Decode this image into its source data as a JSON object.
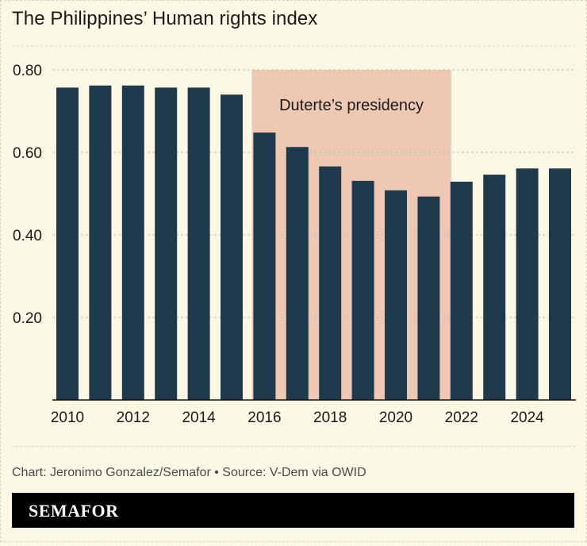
{
  "title": "The Philippines’ Human rights index",
  "credit": "Chart: Jeronimo Gonzalez/Semafor • Source: V-Dem via OWID",
  "brand": "SEMAFOR",
  "colors": {
    "background": "#fbf8e6",
    "bar": "#1f3a4d",
    "highlight": "#eec8b2",
    "grid": "#b9b6a8",
    "text": "#1a1a1a"
  },
  "chart_data": {
    "type": "bar",
    "x": [
      2010,
      2011,
      2012,
      2013,
      2014,
      2015,
      2016,
      2017,
      2018,
      2019,
      2020,
      2021,
      2022,
      2023,
      2024,
      2025
    ],
    "values": [
      0.757,
      0.762,
      0.762,
      0.757,
      0.757,
      0.74,
      0.648,
      0.613,
      0.566,
      0.531,
      0.508,
      0.493,
      0.529,
      0.546,
      0.561,
      0.561
    ],
    "y_ticks": [
      "0.20",
      "0.40",
      "0.60",
      "0.80"
    ],
    "x_ticks": [
      "2010",
      "2012",
      "2014",
      "2016",
      "2018",
      "2020",
      "2022",
      "2024"
    ],
    "ylim": [
      0,
      0.8
    ],
    "grid": true,
    "annotation": {
      "label": "Duterte’s presidency",
      "x_start": 2016,
      "x_end": 2022
    }
  }
}
